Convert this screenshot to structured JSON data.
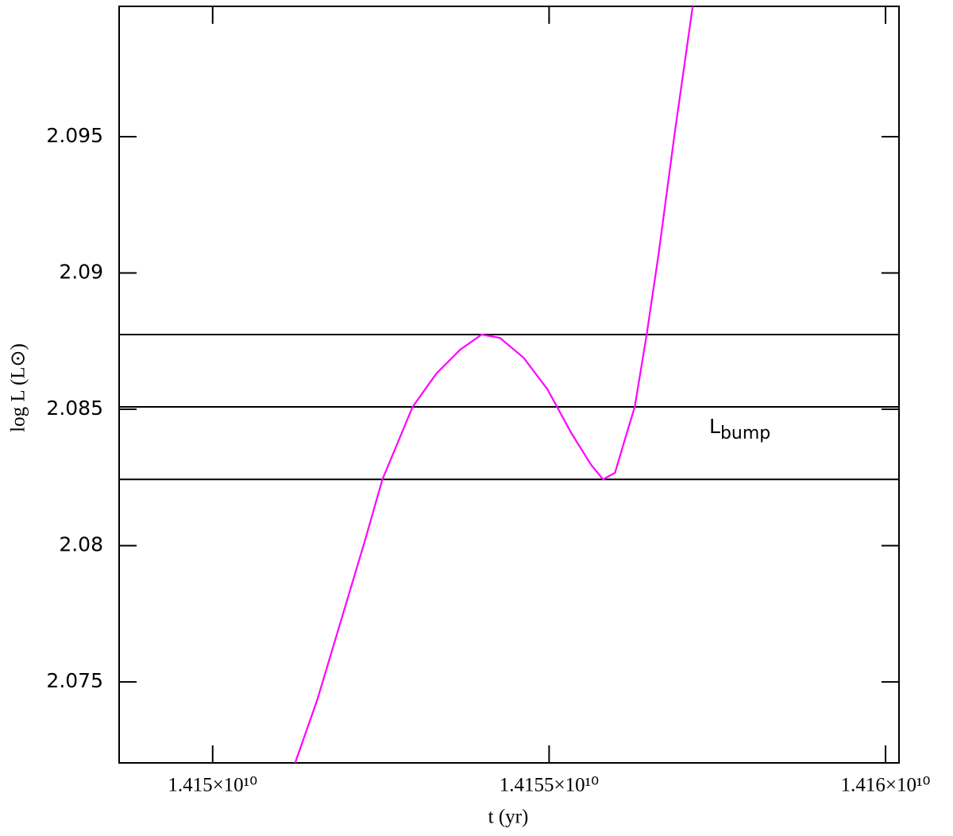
{
  "chart_data": {
    "type": "line",
    "xlabel": "t   (yr)",
    "ylabel": "log L (L⊙)",
    "annotation": {
      "text": "L",
      "subscript": "bump"
    },
    "x": [
      14151226000,
      14151557000,
      14151910000,
      14152264000,
      14152523000,
      14152736000,
      14152972000,
      14153325000,
      14153679000,
      14153997000,
      14154269000,
      14154622000,
      14154976000,
      14155330000,
      14155625000,
      14155802000,
      14155979000,
      14156155000,
      14156273000,
      14156450000,
      14156627000,
      14156863000,
      14157134000
    ],
    "series": [
      {
        "color": "#ff00ff",
        "values": [
          2.07203,
          2.07436,
          2.07727,
          2.08019,
          2.08243,
          2.08369,
          2.08509,
          2.08631,
          2.08719,
          2.08774,
          2.08762,
          2.08689,
          2.08573,
          2.08413,
          2.08296,
          2.08243,
          2.08267,
          2.08413,
          2.08509,
          2.08774,
          2.09069,
          2.09506,
          2.09978
        ]
      }
    ],
    "hlines": [
      2.08774,
      2.08509,
      2.08243
    ],
    "xlim": [
      14148610000,
      14160200000
    ],
    "ylim": [
      2.07203,
      2.09978
    ],
    "xticks": [
      {
        "value": 14150000000,
        "label": "1.415×10¹⁰"
      },
      {
        "value": 14155000000,
        "label": "1.4155×10¹⁰"
      },
      {
        "value": 14160000000,
        "label": "1.416×10¹⁰"
      }
    ],
    "yticks": [
      2.075,
      2.08,
      2.085,
      2.09,
      2.095
    ]
  }
}
